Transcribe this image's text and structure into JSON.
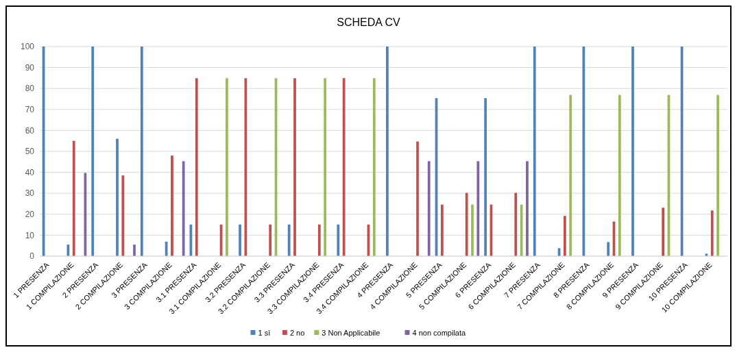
{
  "chart_data": {
    "type": "bar",
    "title": "SCHEDA CV",
    "categories": [
      "1 PRESENZA",
      "1 COMPILAZIONE",
      "2 PRESENZA",
      "2 COMPILAZIONE",
      "3 PRESENZA",
      "3 COMPILAZIONE",
      "3.1 PRESENZA",
      "3.1 COMPILAZIONE",
      "3.2 PRESENZA",
      "3.2 COMPILAZIONE",
      "3.3 PRESENZA",
      "3.3 COMPILAZIONE",
      "3.4 PRESENZA",
      "3.4 COMPILAZIONE",
      "4 PRESENZA",
      "4 COMPILAZIONE",
      "5 PRESENZA",
      "5 COMPILAZIONE",
      "6 PRESENZA",
      "6 COMPILAZIONE",
      "7 PRESENZA",
      "7 COMPILAZIONE",
      "8 PRESENZA",
      "8 COMPILAZIONE",
      "9 PRESENZA",
      "9 COMPILAZIONE",
      "10 PRESENZA",
      "10 COMPILAZIONE"
    ],
    "series": [
      {
        "name": "1 sì",
        "color": "#4f81bd",
        "values": [
          100,
          5.5,
          100,
          56,
          100,
          6.9,
          15.1,
          null,
          15.1,
          null,
          15.1,
          null,
          15.1,
          null,
          100,
          null,
          75.4,
          null,
          75.4,
          null,
          100,
          3.8,
          100,
          6.7,
          100,
          null,
          100,
          1.2
        ]
      },
      {
        "name": "2 no",
        "color": "#c0504d",
        "values": [
          null,
          55,
          null,
          38.5,
          null,
          48,
          84.9,
          15.1,
          84.9,
          15.1,
          84.9,
          15.1,
          84.9,
          15.1,
          null,
          54.7,
          24.6,
          30.2,
          24.6,
          30.2,
          null,
          19.2,
          null,
          16.5,
          null,
          23.1,
          null,
          21.8
        ]
      },
      {
        "name": "3 Non Applicabile",
        "color": "#9bbb59",
        "values": [
          null,
          null,
          null,
          null,
          null,
          null,
          null,
          84.9,
          null,
          84.9,
          null,
          84.9,
          null,
          84.9,
          null,
          null,
          null,
          24.6,
          null,
          24.6,
          null,
          76.9,
          null,
          76.9,
          null,
          76.9,
          null,
          76.9
        ]
      },
      {
        "name": "4 non compilata",
        "color": "#8064a2",
        "values": [
          null,
          39.7,
          null,
          5.5,
          null,
          45.3,
          null,
          null,
          null,
          null,
          null,
          null,
          null,
          null,
          null,
          45.3,
          null,
          45.3,
          null,
          45.3,
          null,
          null,
          null,
          null,
          null,
          null,
          null,
          null
        ]
      }
    ],
    "ylim": [
      0,
      100
    ],
    "yticks": [
      0,
      10,
      20,
      30,
      40,
      50,
      60,
      70,
      80,
      90,
      100
    ],
    "grid": "y",
    "legend": "bottom"
  }
}
